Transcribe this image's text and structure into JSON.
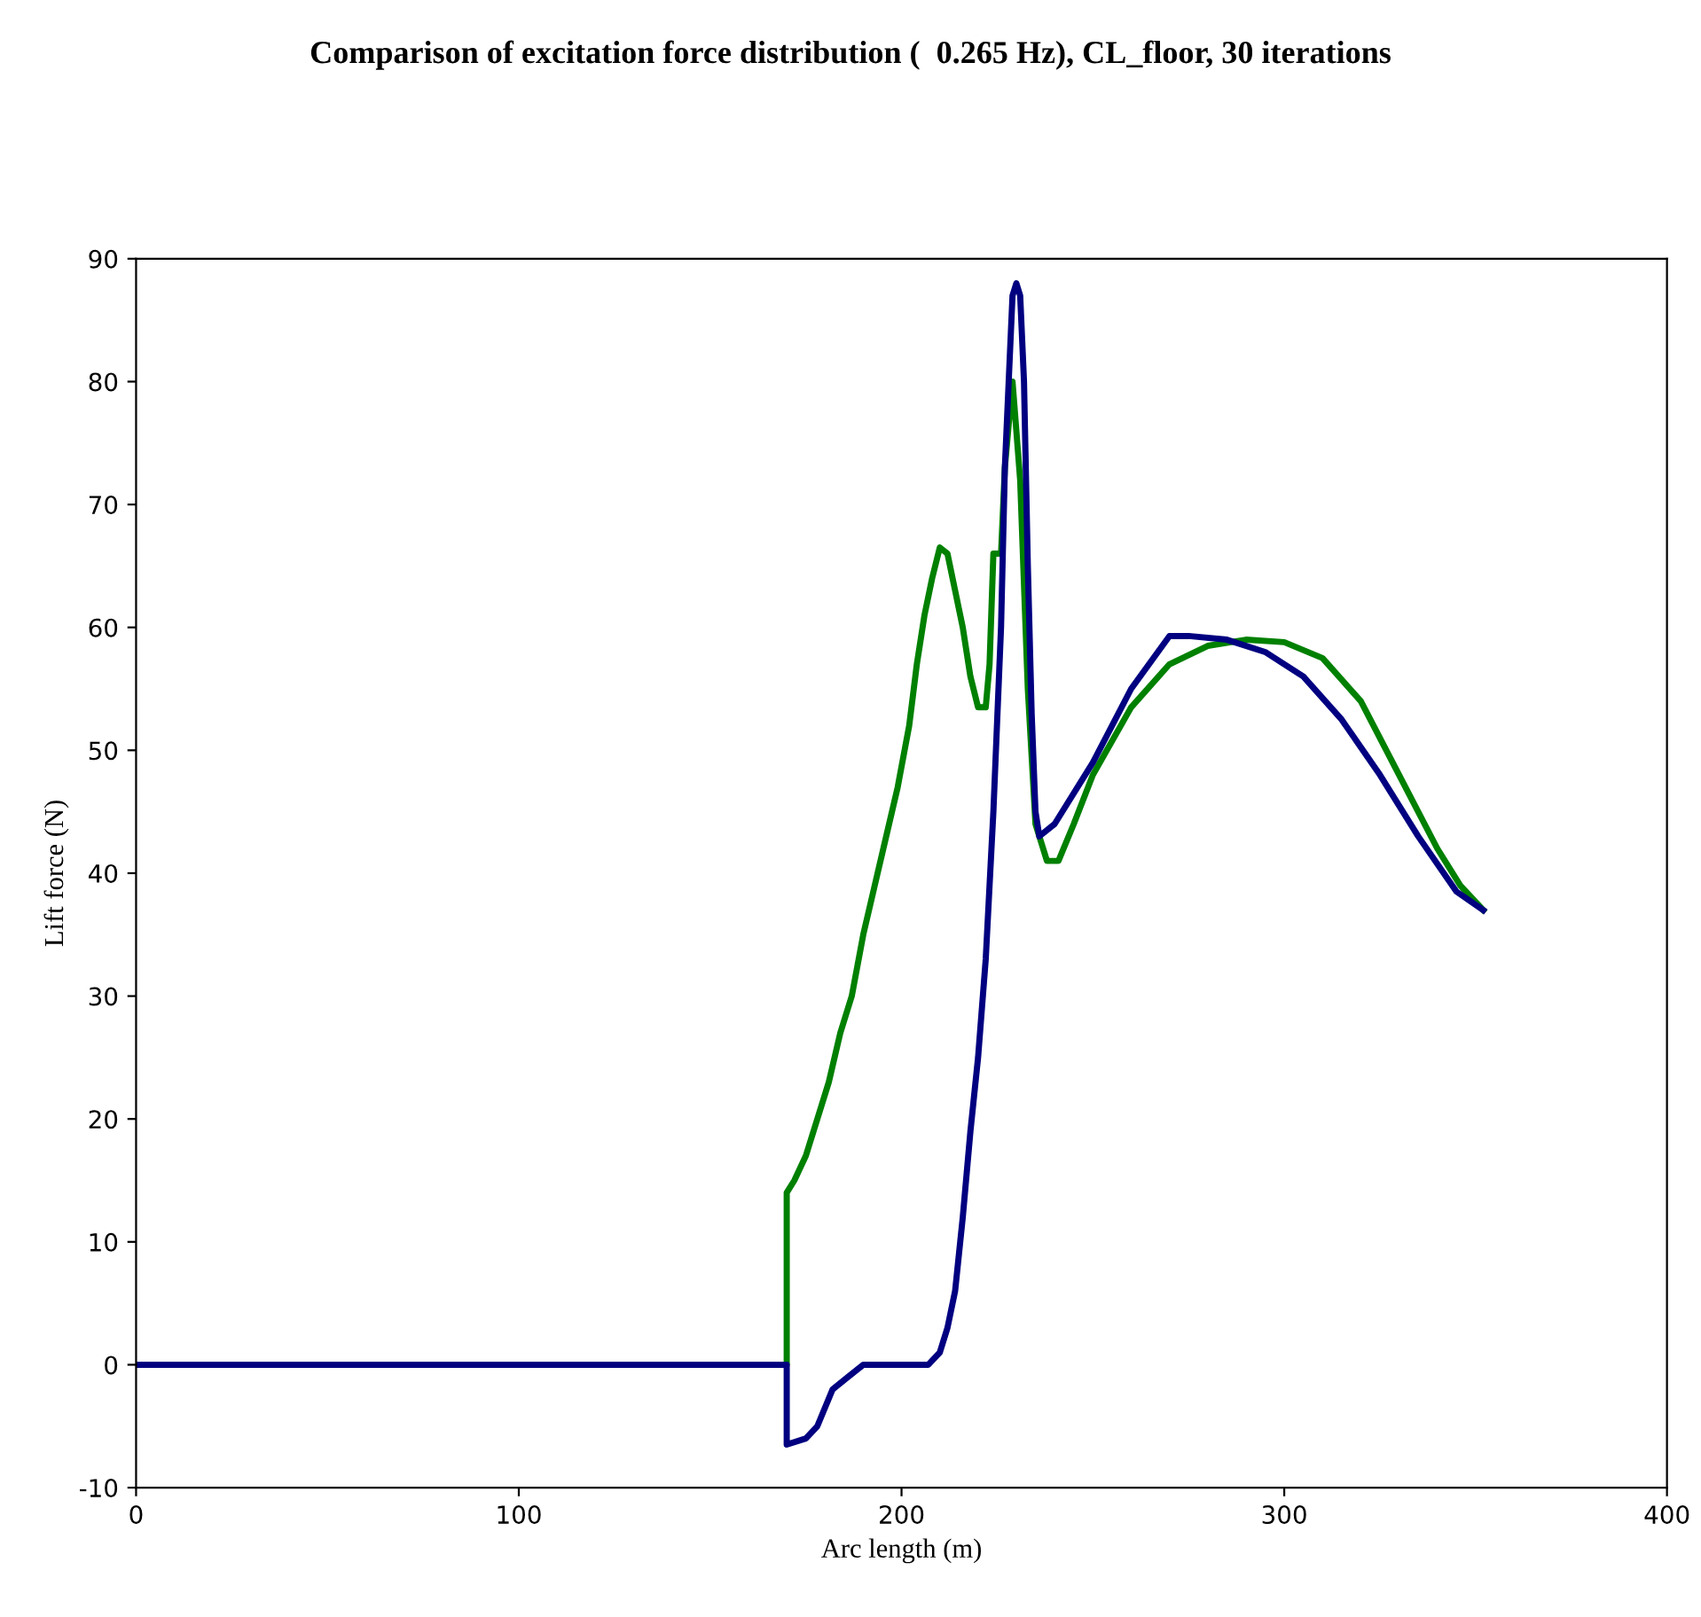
{
  "chart_data": {
    "type": "line",
    "title": "Comparison of excitation force distribution (  0.265 Hz), CL_floor, 30 iterations",
    "xlabel": "Arc length (m)",
    "ylabel": "Lift force (N)",
    "xlim": [
      0,
      400
    ],
    "xticks": [
      0,
      100,
      200,
      300,
      400
    ],
    "ylim": [
      -10,
      90
    ],
    "yticks": [
      -10,
      0,
      10,
      20,
      30,
      40,
      50,
      60,
      70,
      80,
      90
    ],
    "grid": false,
    "series": [
      {
        "color": "#008000",
        "x": [
          0,
          170,
          170,
          172,
          175,
          178,
          181,
          184,
          187,
          190,
          193,
          196,
          199,
          202,
          204,
          206,
          208,
          210,
          212,
          214,
          216,
          218,
          220,
          222,
          223,
          224,
          226,
          227,
          229,
          231,
          233,
          235,
          238,
          241,
          245,
          250,
          260,
          270,
          280,
          290,
          300,
          310,
          320,
          330,
          340,
          346,
          352
        ],
        "values": [
          0,
          0,
          14,
          15,
          17,
          20,
          23,
          27,
          30,
          35,
          39,
          43,
          47,
          52,
          57,
          61,
          64,
          66.5,
          66,
          63,
          60,
          56,
          53.5,
          53.5,
          57,
          66,
          66,
          73,
          80,
          72,
          55,
          44,
          41,
          41,
          44,
          48,
          53.5,
          57,
          58.5,
          59,
          58.8,
          57.5,
          54,
          48,
          42,
          39,
          37
        ]
      },
      {
        "color": "#000080",
        "x": [
          0,
          170,
          170,
          175,
          178,
          182,
          186,
          190,
          195,
          200,
          207,
          210,
          212,
          214,
          216,
          218,
          220,
          222,
          224,
          226,
          227,
          228,
          229,
          230,
          231,
          232,
          233,
          234,
          235,
          236,
          240,
          250,
          260,
          270,
          275,
          285,
          295,
          305,
          315,
          325,
          335,
          345,
          352
        ],
        "values": [
          0,
          0,
          -6.5,
          -6,
          -5,
          -2,
          -1,
          0,
          0,
          0,
          0,
          1,
          3,
          6,
          12,
          19,
          25,
          33,
          45,
          60,
          73,
          80,
          87,
          88,
          87,
          80,
          65,
          53,
          45,
          43,
          44,
          49,
          55,
          59.3,
          59.3,
          59,
          58,
          56,
          52.5,
          48,
          43,
          38.5,
          37
        ]
      }
    ]
  }
}
